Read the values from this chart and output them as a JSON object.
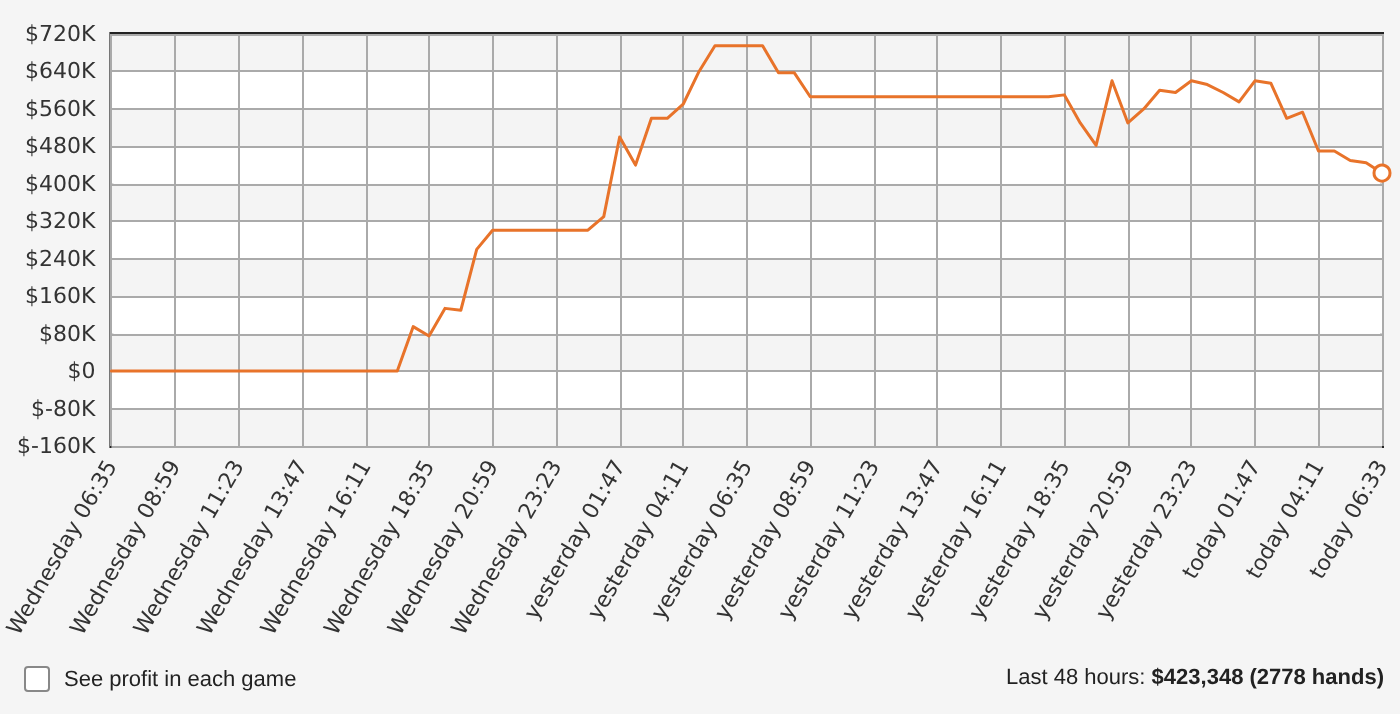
{
  "chart_data": {
    "type": "line",
    "categories": [
      "Wednesday 06:35",
      null,
      null,
      null,
      "Wednesday 08:59",
      null,
      null,
      null,
      "Wednesday 11:23",
      null,
      null,
      null,
      "Wednesday 13:47",
      null,
      null,
      null,
      "Wednesday 16:11",
      null,
      null,
      null,
      "Wednesday 18:35",
      null,
      null,
      null,
      "Wednesday 20:59",
      null,
      null,
      null,
      "Wednesday 23:23",
      null,
      null,
      null,
      "yesterday 01:47",
      null,
      null,
      null,
      "yesterday 04:11",
      null,
      null,
      null,
      "yesterday 06:35",
      null,
      null,
      null,
      "yesterday 08:59",
      null,
      null,
      null,
      "yesterday 11:23",
      null,
      null,
      null,
      "yesterday 13:47",
      null,
      null,
      null,
      "yesterday 16:11",
      null,
      null,
      null,
      "yesterday 18:35",
      null,
      null,
      null,
      "yesterday 20:59",
      null,
      null,
      null,
      "yesterday 23:23",
      null,
      null,
      null,
      "today 01:47",
      null,
      null,
      null,
      "today 04:11",
      null,
      null,
      null,
      "today 06:33"
    ],
    "series": [
      {
        "color": "#e8732a",
        "values": [
          0,
          0,
          0,
          0,
          0,
          0,
          0,
          0,
          0,
          0,
          0,
          0,
          0,
          0,
          0,
          0,
          0,
          0,
          0,
          95,
          75,
          134,
          130,
          260,
          301,
          301,
          301,
          301,
          301,
          301,
          301,
          330,
          500,
          440,
          540,
          540,
          570,
          640,
          695,
          695,
          695,
          695,
          637,
          637,
          586,
          586,
          586,
          586,
          586,
          586,
          586,
          586,
          586,
          586,
          586,
          586,
          586,
          586,
          586,
          586,
          590,
          530,
          482,
          620,
          530,
          560,
          600,
          595,
          620,
          612,
          595,
          575,
          620,
          615,
          540,
          553,
          470,
          470,
          450,
          445,
          423
        ]
      }
    ],
    "ylim": [
      -160,
      720
    ],
    "yticks": [
      {
        "value": -160,
        "label": "$-160K"
      },
      {
        "value": -80,
        "label": "$-80K"
      },
      {
        "value": 0,
        "label": "$0"
      },
      {
        "value": 80,
        "label": "$80K"
      },
      {
        "value": 160,
        "label": "$160K"
      },
      {
        "value": 240,
        "label": "$240K"
      },
      {
        "value": 320,
        "label": "$320K"
      },
      {
        "value": 400,
        "label": "$400K"
      },
      {
        "value": 480,
        "label": "$480K"
      },
      {
        "value": 560,
        "label": "$560K"
      },
      {
        "value": 640,
        "label": "$640K"
      },
      {
        "value": 720,
        "label": "$720K"
      }
    ],
    "grid": true,
    "marker": "none",
    "line_style": "solid",
    "annotations": [
      "See profit in each game",
      "Last 48 hours: $423,348 (2778 hands)"
    ]
  }
}
